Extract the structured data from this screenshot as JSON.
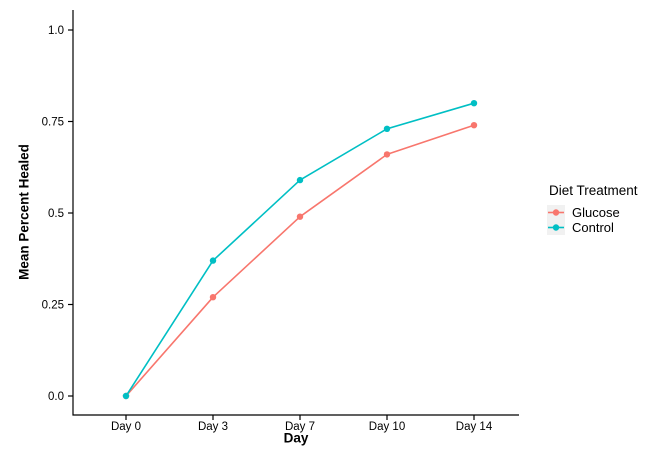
{
  "chart_data": {
    "type": "line",
    "title": "",
    "xlabel": "Day",
    "ylabel": "Mean Percent Healed",
    "categories": [
      "Day 0",
      "Day 3",
      "Day 7",
      "Day 10",
      "Day 14"
    ],
    "series": [
      {
        "name": "Glucose",
        "color": "#F8766D",
        "values": [
          0.0,
          0.27,
          0.49,
          0.66,
          0.74
        ]
      },
      {
        "name": "Control",
        "color": "#00BFC4",
        "values": [
          0.0,
          0.37,
          0.59,
          0.73,
          0.8
        ]
      }
    ],
    "yticks": [
      {
        "value": 0.0,
        "label": "0.0"
      },
      {
        "value": 0.25,
        "label": "0.25"
      },
      {
        "value": 0.5,
        "label": "0.5"
      },
      {
        "value": 0.75,
        "label": "0.75"
      },
      {
        "value": 1.0,
        "label": "1.0"
      }
    ],
    "ylim": [
      -0.05,
      1.05
    ],
    "grid": false,
    "legend": {
      "title": "Diet Treatment",
      "position": "right"
    },
    "colors": {
      "axis": "#000000",
      "background": "#ffffff",
      "legend_key_bg": "#f1f1f1",
      "glucose": "#F8766D",
      "control": "#00BFC4"
    }
  }
}
